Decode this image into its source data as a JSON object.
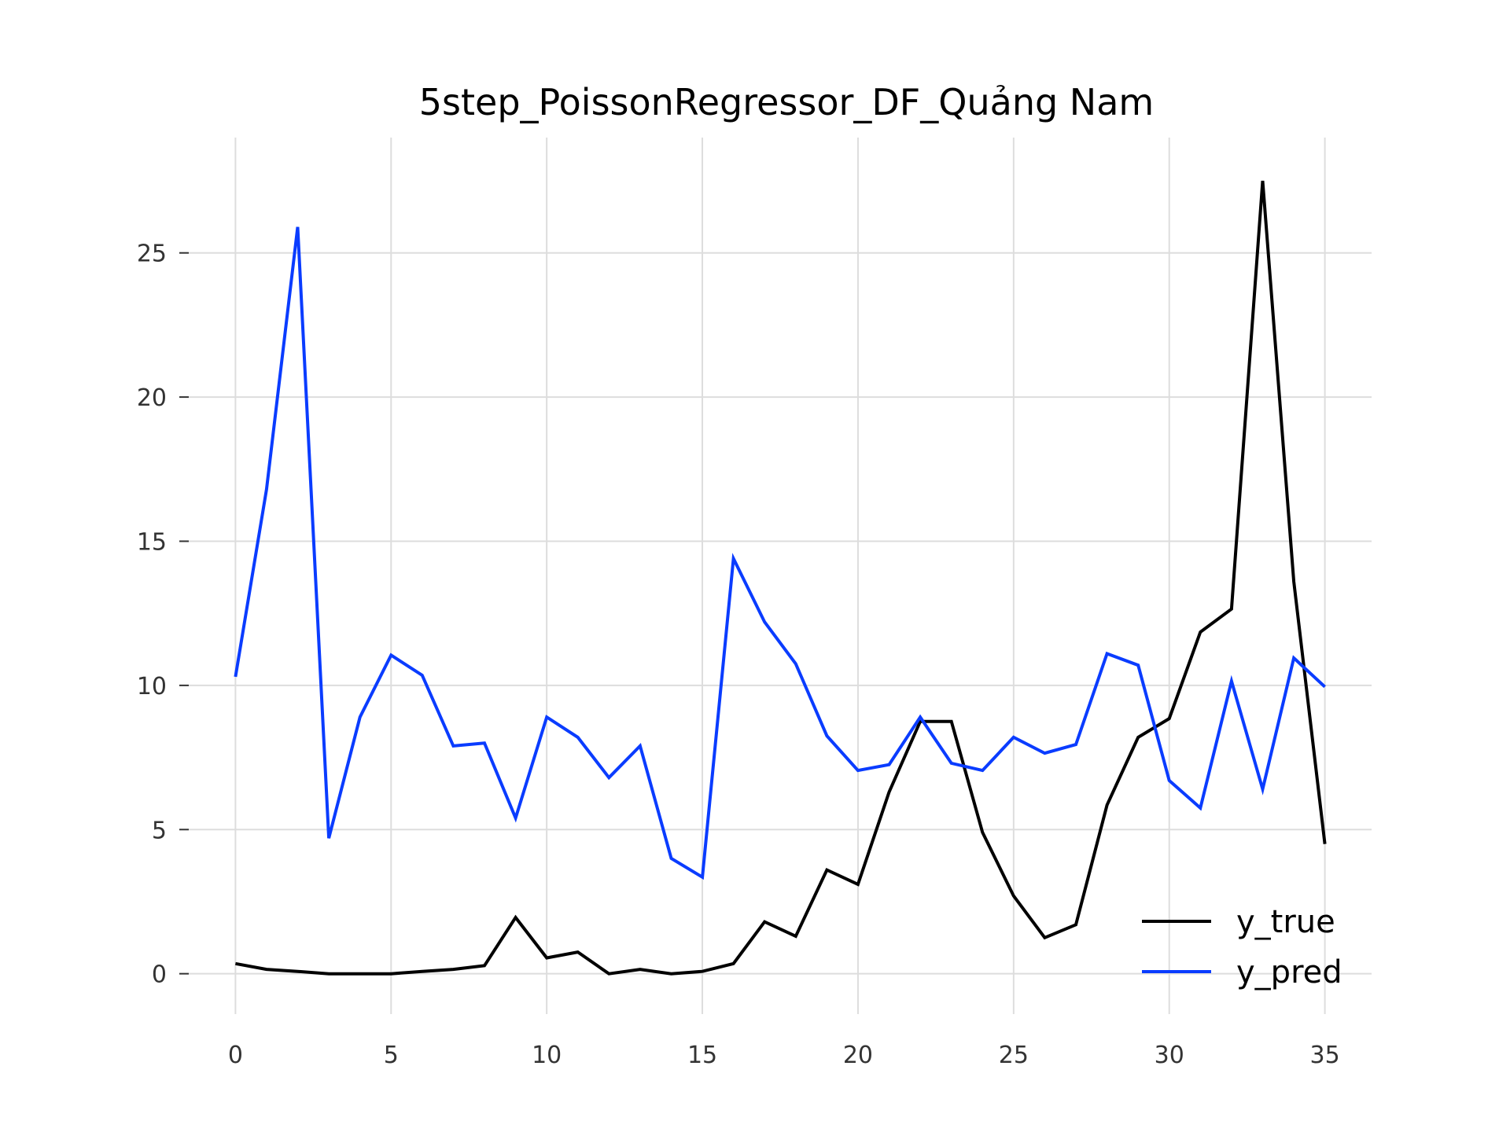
{
  "chart_data": {
    "type": "line",
    "title": "5step_PoissonRegressor_DF_Quảng Nam",
    "xlabel": "",
    "ylabel": "",
    "xlim": [
      -1.5,
      36.5
    ],
    "ylim": [
      -1.4,
      29.0
    ],
    "x_ticks": [
      0,
      5,
      10,
      15,
      20,
      25,
      30,
      35
    ],
    "y_ticks": [
      0,
      5,
      10,
      15,
      20,
      25
    ],
    "grid": true,
    "legend_position": "lower-right",
    "x": [
      0,
      1,
      2,
      3,
      4,
      5,
      6,
      7,
      8,
      9,
      10,
      11,
      12,
      13,
      14,
      15,
      16,
      17,
      18,
      19,
      20,
      21,
      22,
      23,
      24,
      25,
      26,
      27,
      28,
      29,
      30,
      31,
      32,
      33,
      34,
      35
    ],
    "series": [
      {
        "name": "y_true",
        "color": "#000000",
        "values": [
          0.35,
          0.15,
          0.08,
          0.0,
          0.0,
          0.0,
          0.08,
          0.15,
          0.28,
          1.95,
          0.55,
          0.75,
          0.0,
          0.15,
          0.0,
          0.08,
          0.35,
          1.8,
          1.3,
          3.6,
          3.1,
          6.3,
          8.75,
          8.75,
          4.9,
          2.7,
          1.25,
          1.7,
          5.85,
          8.2,
          8.85,
          11.85,
          12.65,
          27.5,
          13.6,
          4.5
        ]
      },
      {
        "name": "y_pred",
        "color": "#0a3cff",
        "values": [
          10.3,
          16.8,
          25.9,
          4.7,
          8.9,
          11.05,
          10.35,
          7.9,
          8.0,
          5.4,
          8.9,
          8.2,
          6.8,
          7.9,
          4.0,
          3.35,
          14.4,
          12.2,
          10.75,
          8.25,
          7.05,
          7.25,
          8.9,
          7.3,
          7.05,
          8.2,
          7.65,
          7.95,
          11.1,
          10.7,
          6.7,
          5.75,
          10.15,
          6.4,
          10.95,
          9.95
        ]
      }
    ]
  }
}
